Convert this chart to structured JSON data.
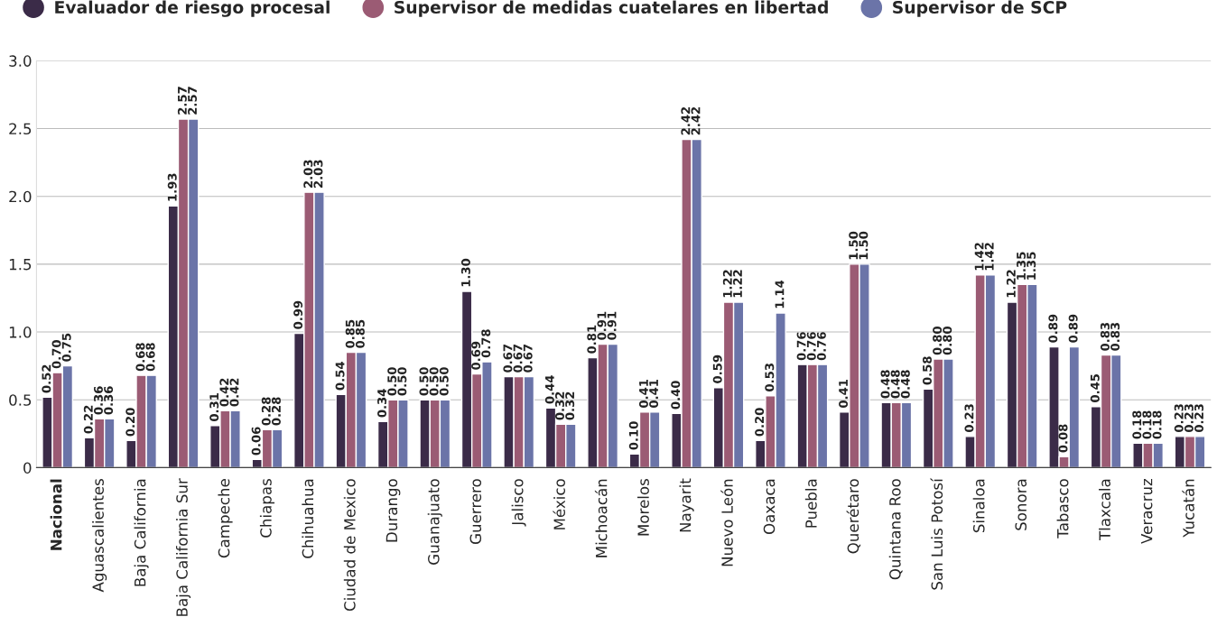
{
  "chart_data": {
    "type": "bar",
    "categories": [
      "Nacional",
      "Aguascalientes",
      "Baja California",
      "Baja California Sur",
      "Campeche",
      "Chiapas",
      "Chihuahua",
      "Ciudad de Mexico",
      "Durango",
      "Guanajuato",
      "Guerrero",
      "Jalisco",
      "México",
      "Michoacán",
      "Morelos",
      "Nayarit",
      "Nuevo León",
      "Oaxaca",
      "Puebla",
      "Querétaro",
      "Quintana Roo",
      "San Luis Potosí",
      "Sinaloa",
      "Sonora",
      "Tabasco",
      "Tlaxcala",
      "Veracruz",
      "Yucatán"
    ],
    "series": [
      {
        "name": "Evaluador de riesgo procesal",
        "color": "#3b2b48",
        "values": [
          0.52,
          0.22,
          0.2,
          1.93,
          0.31,
          0.06,
          0.99,
          0.54,
          0.34,
          0.5,
          1.3,
          0.67,
          0.44,
          0.81,
          0.1,
          0.4,
          0.59,
          0.2,
          0.76,
          0.41,
          0.48,
          0.58,
          0.23,
          1.22,
          0.89,
          0.45,
          0.18,
          0.23
        ],
        "value_labels": [
          "0.52",
          "0.22",
          "0.20",
          "1.93",
          "0.31",
          "0.06",
          "0.99",
          "0.54",
          "0.34",
          "0.50",
          "1.30",
          "0.67",
          "0.44",
          "0.81",
          "0.10",
          "0.40",
          "0.59",
          "0.20",
          "0.76",
          "0.41",
          "0.48",
          "0.58",
          "0.23",
          "1.22",
          "0.89",
          "0.45",
          "0.18",
          "0.23"
        ]
      },
      {
        "name": "Supervisor de medidas cuatelares en libertad",
        "color": "#9b5b74",
        "values": [
          0.7,
          0.36,
          0.68,
          2.57,
          0.42,
          0.28,
          2.03,
          0.85,
          0.5,
          0.5,
          0.69,
          0.67,
          0.32,
          0.91,
          0.41,
          2.42,
          1.22,
          0.53,
          0.76,
          1.5,
          0.48,
          0.8,
          1.42,
          1.35,
          0.08,
          0.83,
          0.18,
          0.23
        ],
        "value_labels": [
          "0.70",
          "0.36",
          "0.68",
          "2.57",
          "0.42",
          "0.28",
          "2.03",
          "0.85",
          "0.50",
          "0.50",
          "0.69",
          "0.67",
          "0.32",
          "0.91",
          "0.41",
          "2.42",
          "1.22",
          "0.53",
          "0.76",
          "1.50",
          "0.48",
          "0.80",
          "1.42",
          "1.35",
          "0.08",
          "0.83",
          "0.18",
          "0.23"
        ]
      },
      {
        "name": "Supervisor de SCP",
        "color": "#6b74a8",
        "values": [
          0.75,
          0.36,
          0.68,
          2.57,
          0.42,
          0.28,
          2.03,
          0.85,
          0.5,
          0.5,
          0.78,
          0.67,
          0.32,
          0.91,
          0.41,
          2.42,
          1.22,
          1.14,
          0.76,
          1.5,
          0.48,
          0.8,
          1.42,
          1.35,
          0.89,
          0.83,
          0.18,
          0.23
        ],
        "value_labels": [
          "0.75",
          "0.36",
          "0.68",
          "2.57",
          "0.42",
          "0.28",
          "2.03",
          "0.85",
          "0.50",
          "0.50",
          "0.78",
          "0.67",
          "0.32",
          "0.91",
          "0.41",
          "2.42",
          "1.22",
          "1.14",
          "0.76",
          "1.50",
          "0.48",
          "0.80",
          "1.42",
          "1.35",
          "0.89",
          "0.83",
          "0.18",
          "0.23"
        ]
      }
    ],
    "ylim": [
      0,
      3.0
    ],
    "yticks": [
      0,
      {
        "value": 0.5,
        "label": "0.5"
      },
      {
        "value": 1,
        "label": "1.0"
      },
      {
        "value": 1.5,
        "label": "1.5"
      },
      {
        "value": 2,
        "label": "2.0"
      },
      {
        "value": 2.5,
        "label": "2.5"
      },
      {
        "value": 3,
        "label": "3.0"
      }
    ],
    "grid": "y",
    "legend": "top",
    "marker": "circle"
  }
}
